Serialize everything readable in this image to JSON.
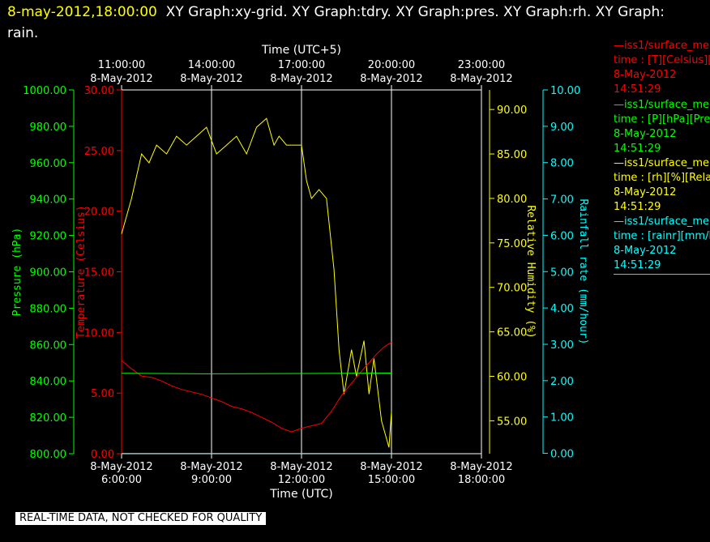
{
  "header": {
    "datetime": "8-may-2012,18:00:00",
    "graphs": "XY Graph:xy-grid.  XY Graph:tdry.  XY Graph:pres.  XY Graph:rh.  XY Graph: rain."
  },
  "disclaimer": "REAL-TIME DATA, NOT CHECKED FOR QUALITY",
  "legend": [
    {
      "name": "—iss1/surface_me",
      "desc": "time : [T][Celsius][T",
      "date": "8-May-2012",
      "time": "14:51:29",
      "color": "#ff0000"
    },
    {
      "name": "—iss1/surface_me",
      "desc": "time : [P][hPa][Pres",
      "date": "8-May-2012",
      "time": "14:51:29",
      "color": "#00ff00"
    },
    {
      "name": "—iss1/surface_me",
      "desc": "time : [rh][%][Relati",
      "date": "8-May-2012",
      "time": "14:51:29",
      "color": "#ffff00"
    },
    {
      "name": "—iss1/surface_me",
      "desc": "time : [rainr][mm/ho",
      "date": "8-May-2012",
      "time": "14:51:29",
      "color": "#00ffff"
    }
  ],
  "chart_data": {
    "type": "line",
    "grid": true,
    "xlabel": "Time (UTC)",
    "x2label": "Time (UTC+5)",
    "xlim": [
      "6:00:00",
      "18:00:00"
    ],
    "x_ticks": [
      {
        "date": "8-May-2012",
        "time": "6:00:00"
      },
      {
        "date": "8-May-2012",
        "time": "9:00:00"
      },
      {
        "date": "8-May-2012",
        "time": "12:00:00"
      },
      {
        "date": "8-May-2012",
        "time": "15:00:00"
      },
      {
        "date": "8-May-2012",
        "time": "18:00:00"
      }
    ],
    "x2_ticks": [
      {
        "time": "11:00:00",
        "date": "8-May-2012"
      },
      {
        "time": "14:00:00",
        "date": "8-May-2012"
      },
      {
        "time": "17:00:00",
        "date": "8-May-2012"
      },
      {
        "time": "20:00:00",
        "date": "8-May-2012"
      },
      {
        "time": "23:00:00",
        "date": "8-May-2012"
      }
    ],
    "axes": [
      {
        "id": "pres",
        "label": "Pressure (hPa)",
        "color": "#00ff00",
        "ylim": [
          800,
          1000
        ],
        "ticks": [
          "800.00",
          "820.00",
          "840.00",
          "860.00",
          "880.00",
          "900.00",
          "920.00",
          "940.00",
          "960.00",
          "980.00",
          "1000.00"
        ]
      },
      {
        "id": "temp",
        "label": "Temperature (Celsius)",
        "color": "#ff0000",
        "ylim": [
          0,
          30
        ],
        "ticks": [
          "0.00",
          "5.00",
          "10.00",
          "15.00",
          "20.00",
          "25.00",
          "30.00"
        ]
      },
      {
        "id": "rh",
        "label": "Relative Humidity (%)",
        "color": "#ffff00",
        "ylim": [
          51.3,
          92.2
        ],
        "ticks": [
          "55.00",
          "60.00",
          "65.00",
          "70.00",
          "75.00",
          "80.00",
          "85.00",
          "90.00"
        ]
      },
      {
        "id": "rain",
        "label": "Rainfall rate (mm/hour)",
        "color": "#00ffff",
        "ylim": [
          -0.01,
          10
        ],
        "ticks": [
          "0.00",
          "1.00",
          "2.00",
          "3.00",
          "4.00",
          "5.00",
          "6.00",
          "7.00",
          "8.00",
          "9.00",
          "10.00"
        ]
      }
    ],
    "series": [
      {
        "axis": "rh",
        "color": "#ffff00",
        "x": [
          "6:00",
          "6:20",
          "6:40",
          "6:55",
          "7:10",
          "7:30",
          "7:50",
          "8:10",
          "8:30",
          "8:50",
          "9:10",
          "9:30",
          "9:50",
          "10:10",
          "10:30",
          "10:50",
          "11:05",
          "11:15",
          "11:30",
          "11:45",
          "12:00",
          "12:10",
          "12:20",
          "12:35",
          "12:50",
          "13:05",
          "13:15",
          "13:25",
          "13:40",
          "13:50",
          "14:05",
          "14:15",
          "14:25",
          "14:40",
          "14:55",
          "15:00"
        ],
        "y": [
          76,
          80,
          85,
          84,
          86,
          85,
          87,
          86,
          87,
          88,
          85,
          86,
          87,
          85,
          88,
          89,
          86,
          87,
          86,
          86,
          86,
          82,
          80,
          81,
          80,
          72,
          63,
          58,
          63,
          60,
          64,
          58,
          62,
          55,
          52,
          56
        ]
      },
      {
        "axis": "temp",
        "color": "#ff0000",
        "x": [
          "6:00",
          "6:20",
          "6:40",
          "7:00",
          "7:20",
          "7:40",
          "8:00",
          "8:20",
          "8:40",
          "9:00",
          "9:20",
          "9:40",
          "10:00",
          "10:20",
          "10:40",
          "11:00",
          "11:20",
          "11:40",
          "12:00",
          "12:20",
          "12:40",
          "13:00",
          "13:20",
          "13:40",
          "14:00",
          "14:15",
          "14:30",
          "14:45",
          "15:00"
        ],
        "y": [
          7.7,
          7.0,
          6.4,
          6.3,
          6.0,
          5.6,
          5.3,
          5.1,
          4.9,
          4.6,
          4.3,
          3.9,
          3.7,
          3.4,
          3.0,
          2.6,
          2.1,
          1.8,
          2.1,
          2.3,
          2.5,
          3.5,
          4.8,
          5.8,
          6.8,
          7.5,
          8.2,
          8.8,
          9.2
        ]
      },
      {
        "axis": "pres",
        "color": "#00ff00",
        "x": [
          "6:00",
          "9:00",
          "12:00",
          "15:00"
        ],
        "y": [
          844.2,
          843.9,
          844.1,
          844.3
        ]
      },
      {
        "axis": "rain",
        "color": "#00ffff",
        "x": [
          "6:00",
          "15:00"
        ],
        "y": [
          0,
          0
        ]
      }
    ]
  }
}
